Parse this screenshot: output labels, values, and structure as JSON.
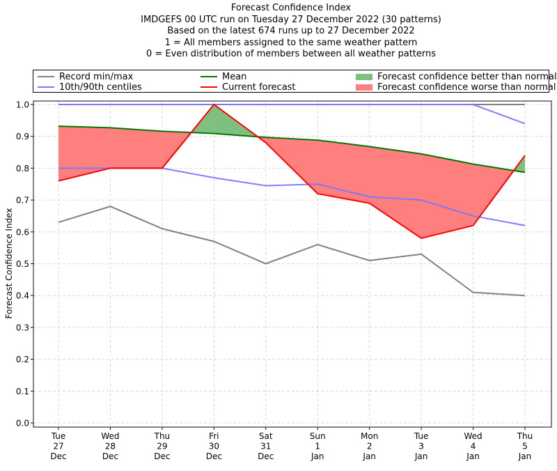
{
  "chart_data": {
    "type": "line",
    "title": "Forecast Confidence Index",
    "subtitle_lines": [
      "IMDGEFS 00 UTC run on Tuesday 27 December 2022 (30 patterns)",
      "Based on the latest 674 runs up to 27 December 2022",
      "1 = All members assigned to the same weather pattern",
      "0 = Even distribution of members between all weather patterns"
    ],
    "xlabel": "",
    "ylabel": "Forecast Confidence Index",
    "ylim": [
      0.0,
      1.0
    ],
    "yticks": [
      "0.0",
      "0.1",
      "0.2",
      "0.3",
      "0.4",
      "0.5",
      "0.6",
      "0.7",
      "0.8",
      "0.9",
      "1.0"
    ],
    "grid": true,
    "legend_placement": "top (above plot, 3 columns)",
    "categories": [
      [
        "Tue",
        "27",
        "Dec"
      ],
      [
        "Wed",
        "28",
        "Dec"
      ],
      [
        "Thu",
        "29",
        "Dec"
      ],
      [
        "Fri",
        "30",
        "Dec"
      ],
      [
        "Sat",
        "31",
        "Dec"
      ],
      [
        "Sun",
        "1",
        "Jan"
      ],
      [
        "Mon",
        "2",
        "Jan"
      ],
      [
        "Tue",
        "3",
        "Jan"
      ],
      [
        "Wed",
        "4",
        "Jan"
      ],
      [
        "Thu",
        "5",
        "Jan"
      ]
    ],
    "series": [
      {
        "name": "Record max",
        "legend": "Record min/max",
        "color": "#808080",
        "values": [
          1.0,
          1.0,
          1.0,
          1.0,
          1.0,
          1.0,
          1.0,
          1.0,
          1.0,
          1.0
        ]
      },
      {
        "name": "Record min",
        "legend": "Record min/max",
        "color": "#808080",
        "values": [
          0.63,
          0.68,
          0.61,
          0.57,
          0.5,
          0.56,
          0.51,
          0.53,
          0.41,
          0.4
        ]
      },
      {
        "name": "90th centile",
        "legend": "10th/90th centiles",
        "color": "#7777ff",
        "values": [
          1.0,
          1.0,
          1.0,
          1.0,
          1.0,
          1.0,
          1.0,
          1.0,
          1.0,
          0.94
        ]
      },
      {
        "name": "10th centile",
        "legend": "10th/90th centiles",
        "color": "#7777ff",
        "values": [
          0.8,
          0.8,
          0.8,
          0.77,
          0.745,
          0.75,
          0.71,
          0.7,
          0.65,
          0.62
        ]
      },
      {
        "name": "Mean",
        "legend": "Mean",
        "color": "#007700",
        "values": [
          0.932,
          0.927,
          0.916,
          0.909,
          0.897,
          0.888,
          0.868,
          0.845,
          0.813,
          0.787
        ]
      },
      {
        "name": "Current forecast",
        "legend": "Current forecast",
        "color": "#ff0000",
        "values": [
          0.76,
          0.8,
          0.8,
          1.0,
          0.88,
          0.72,
          0.69,
          0.58,
          0.62,
          0.84
        ]
      }
    ],
    "fills": [
      {
        "name": "Forecast confidence better than normal",
        "color": "#7fbf7f",
        "between": [
          "Mean",
          "Current forecast"
        ],
        "where": "current > mean"
      },
      {
        "name": "Forecast confidence worse than normal",
        "color": "#ff7f7f",
        "between": [
          "Mean",
          "Current forecast"
        ],
        "where": "current < mean"
      }
    ]
  },
  "legend": {
    "items": [
      {
        "label": "Record min/max",
        "kind": "line",
        "color": "#808080"
      },
      {
        "label": "10th/90th centiles",
        "kind": "line",
        "color": "#7777ff"
      },
      {
        "label": "Mean",
        "kind": "line",
        "color": "#007700"
      },
      {
        "label": "Current forecast",
        "kind": "line",
        "color": "#ff0000"
      },
      {
        "label": "Forecast confidence better than normal",
        "kind": "patch",
        "color": "#7fbf7f"
      },
      {
        "label": "Forecast confidence worse than normal",
        "kind": "patch",
        "color": "#ff7f7f"
      }
    ]
  }
}
